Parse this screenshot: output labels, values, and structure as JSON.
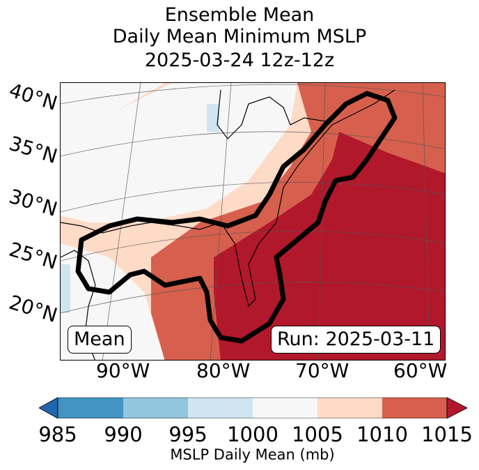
{
  "title": {
    "line1": "Ensemble Mean",
    "line2": "Daily Mean Minimum MSLP",
    "line3": "2025-03-24 12z-12z"
  },
  "map": {
    "lat_labels": [
      "40°N",
      "35°N",
      "30°N",
      "25°N",
      "20°N"
    ],
    "lon_labels": [
      "90°W",
      "80°W",
      "70°W",
      "60°W"
    ],
    "mean_badge": "Mean",
    "run_badge": "Run: 2025-03-11"
  },
  "colorbar": {
    "label": "MSLP Daily Mean (mb)",
    "ticks": [
      "985",
      "990",
      "995",
      "1000",
      "1005",
      "1010",
      "1015"
    ],
    "colors": [
      "#2166ac",
      "#4393c3",
      "#92c5de",
      "#d1e5f0",
      "#f7f7f7",
      "#fddbc7",
      "#d6604d",
      "#b2182b"
    ]
  }
}
